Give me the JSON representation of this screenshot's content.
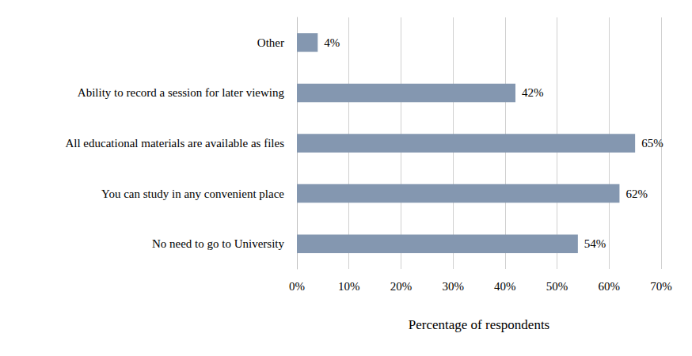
{
  "chart_data": {
    "type": "bar",
    "orientation": "horizontal",
    "categories": [
      "No need to go to University",
      "You can study in any convenient place",
      "All educational materials are available as files",
      "Ability to record a session for later viewing",
      "Other"
    ],
    "values": [
      54,
      62,
      65,
      42,
      4
    ],
    "value_labels": [
      "54%",
      "62%",
      "65%",
      "42%",
      "4%"
    ],
    "data_labels": true,
    "color": "#8497b0",
    "x_label": "Percentage of respondents",
    "xlim": [
      0,
      70
    ],
    "xticks": [
      {
        "value": 0,
        "label": "0%"
      },
      {
        "value": 10,
        "label": "10%"
      },
      {
        "value": 20,
        "label": "20%"
      },
      {
        "value": 30,
        "label": "30%"
      },
      {
        "value": 40,
        "label": "40%"
      },
      {
        "value": 50,
        "label": "50%"
      },
      {
        "value": 60,
        "label": "60%"
      },
      {
        "value": 70,
        "label": "70%"
      }
    ],
    "grid": true
  }
}
